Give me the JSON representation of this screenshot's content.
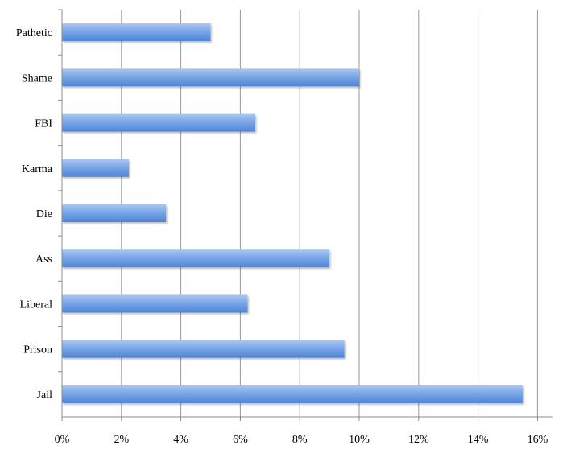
{
  "chart_data": {
    "type": "bar",
    "orientation": "horizontal",
    "title": "",
    "xlabel": "",
    "ylabel": "",
    "categories": [
      "Pathetic",
      "Shame",
      "FBI",
      "Karma",
      "Die",
      "Ass",
      "Liberal",
      "Prison",
      "Jail"
    ],
    "values": [
      5.0,
      10.0,
      6.5,
      2.25,
      3.5,
      9.0,
      6.25,
      9.5,
      15.5
    ],
    "value_unit": "%",
    "xlim": [
      0,
      16.5
    ],
    "x_ticks": [
      0,
      2,
      4,
      6,
      8,
      10,
      12,
      14,
      16
    ],
    "x_tick_labels": [
      "0%",
      "2%",
      "4%",
      "6%",
      "8%",
      "10%",
      "12%",
      "14%",
      "16%"
    ],
    "grid": "vertical",
    "legend": "none",
    "bar_color_top": "#a9c8f2",
    "bar_color_mid": "#7aa7e6",
    "bar_color_bottom": "#4f84d6",
    "grid_color": "#9a9a9a",
    "axis_color": "#8c8c8c"
  }
}
